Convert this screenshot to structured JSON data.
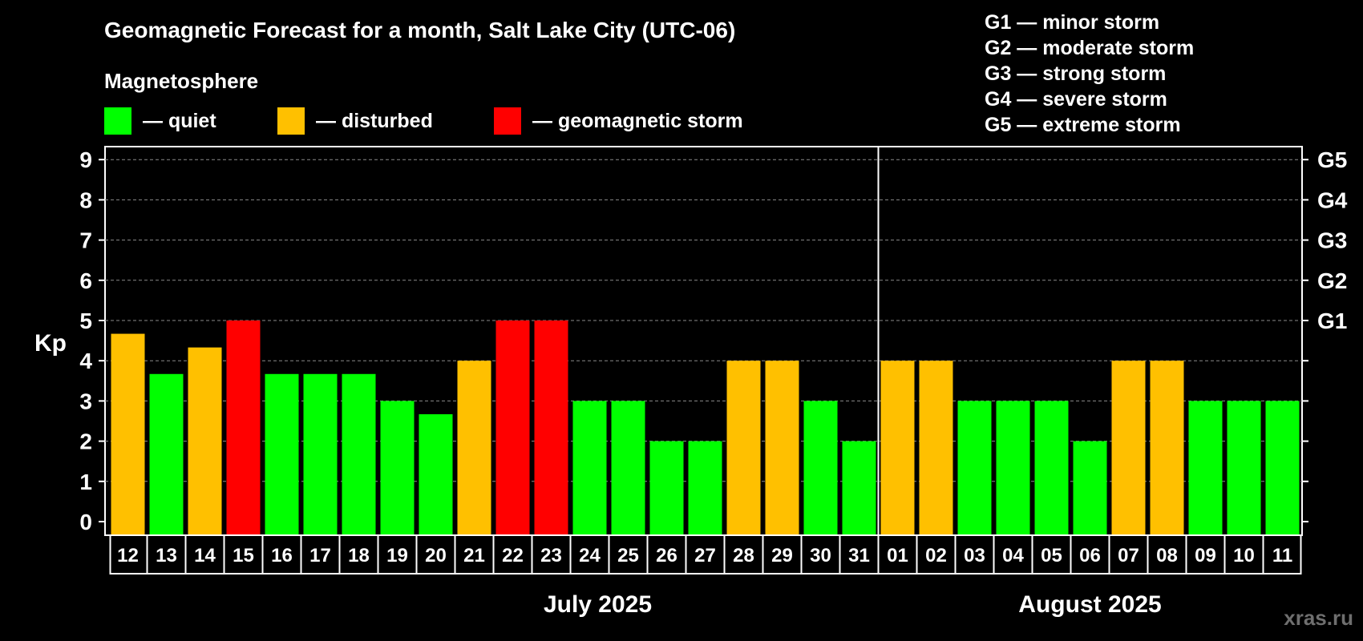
{
  "title": "Geomagnetic Forecast for a month, Salt Lake City (UTC-06)",
  "subtitle": "Magnetosphere",
  "legend": [
    {
      "label": "— quiet",
      "color": "#00ff00"
    },
    {
      "label": "— disturbed",
      "color": "#ffc000"
    },
    {
      "label": "— geomagnetic storm",
      "color": "#ff0000"
    }
  ],
  "g_legend": [
    "G1 — minor storm",
    "G2 — moderate storm",
    "G3 — strong storm",
    "G4 — severe storm",
    "G5 — extreme storm"
  ],
  "watermark": "xras.ru",
  "chart_data": {
    "type": "bar",
    "ylabel": "Kp",
    "ylim": [
      0,
      9
    ],
    "yticks": [
      "0",
      "1",
      "2",
      "3",
      "4",
      "5",
      "6",
      "7",
      "8",
      "9"
    ],
    "right_ticks": [
      {
        "kp": 5,
        "label": "G1"
      },
      {
        "kp": 6,
        "label": "G2"
      },
      {
        "kp": 7,
        "label": "G3"
      },
      {
        "kp": 8,
        "label": "G4"
      },
      {
        "kp": 9,
        "label": "G5"
      }
    ],
    "grid": true,
    "categories": [
      "12",
      "13",
      "14",
      "15",
      "16",
      "17",
      "18",
      "19",
      "20",
      "21",
      "22",
      "23",
      "24",
      "25",
      "26",
      "27",
      "28",
      "29",
      "30",
      "31",
      "01",
      "02",
      "03",
      "04",
      "05",
      "06",
      "07",
      "08",
      "09",
      "10",
      "11"
    ],
    "values": [
      4.67,
      3.67,
      4.33,
      5,
      3.67,
      3.67,
      3.67,
      3,
      2.67,
      4,
      5,
      5,
      3,
      3,
      2,
      2,
      4,
      4,
      3,
      2,
      4,
      4,
      3,
      3,
      3,
      2,
      4,
      4,
      3,
      3,
      3
    ],
    "levels": [
      "disturbed",
      "quiet",
      "disturbed",
      "storm",
      "quiet",
      "quiet",
      "quiet",
      "quiet",
      "quiet",
      "disturbed",
      "storm",
      "storm",
      "quiet",
      "quiet",
      "quiet",
      "quiet",
      "disturbed",
      "disturbed",
      "quiet",
      "quiet",
      "disturbed",
      "disturbed",
      "quiet",
      "quiet",
      "quiet",
      "quiet",
      "disturbed",
      "disturbed",
      "quiet",
      "quiet",
      "quiet"
    ],
    "level_colors": {
      "quiet": "#00ff00",
      "disturbed": "#ffc000",
      "storm": "#ff0000"
    },
    "months": [
      {
        "label": "July 2025",
        "start_index": 0,
        "end_index": 19
      },
      {
        "label": "August 2025",
        "start_index": 20,
        "end_index": 30
      }
    ]
  }
}
